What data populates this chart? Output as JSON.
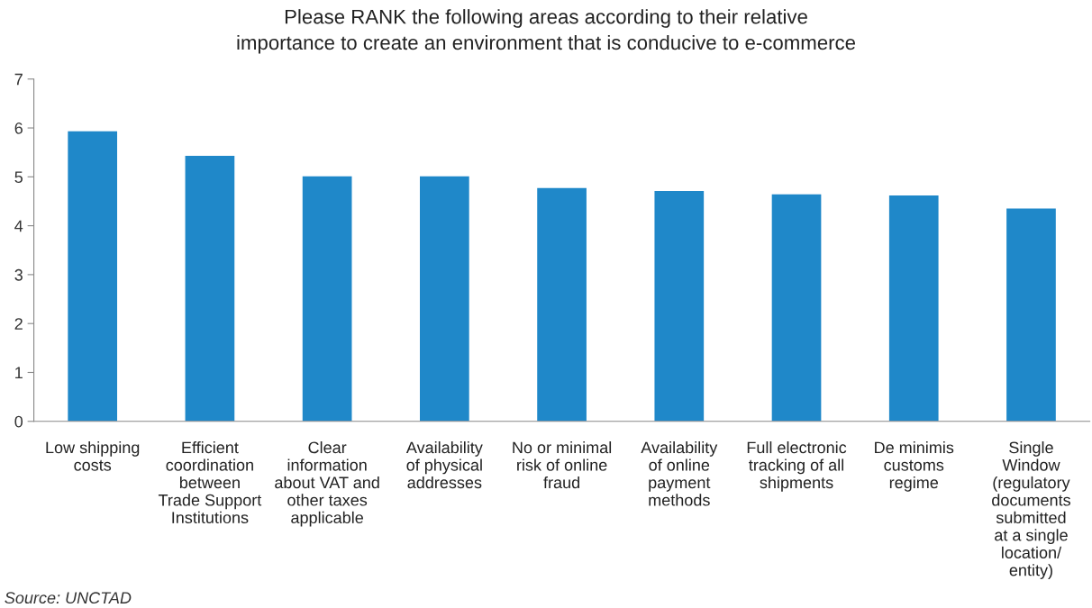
{
  "chart_data": {
    "type": "bar",
    "title": "Please RANK the following areas according to their relative\nimportance to create an environment that is conducive to e-commerce",
    "categories": [
      "Low shipping\ncosts",
      "Efficient\ncoordination\nbetween\nTrade Support\nInstitutions",
      "Clear\ninformation\nabout VAT and\nother taxes\napplicable",
      "Availability\nof physical\naddresses",
      "No or minimal\nrisk of online\nfraud",
      "Availability\nof online\npayment\nmethods",
      "Full electronic\ntracking of all\nshipments",
      "De minimis\ncustoms\nregime",
      "Single\nWindow\n(regulatory\ndocuments\nsubmitted\nat a single\nlocation/\nentity)"
    ],
    "values": [
      5.93,
      5.43,
      5.01,
      5.01,
      4.77,
      4.71,
      4.64,
      4.62,
      4.35
    ],
    "color": "#1f88c9",
    "ylim": [
      0,
      7
    ],
    "yticks": [
      0,
      1,
      2,
      3,
      4,
      5,
      6,
      7
    ],
    "grid": false,
    "legend": false,
    "annotations": [
      "Source: UNCTAD"
    ]
  }
}
